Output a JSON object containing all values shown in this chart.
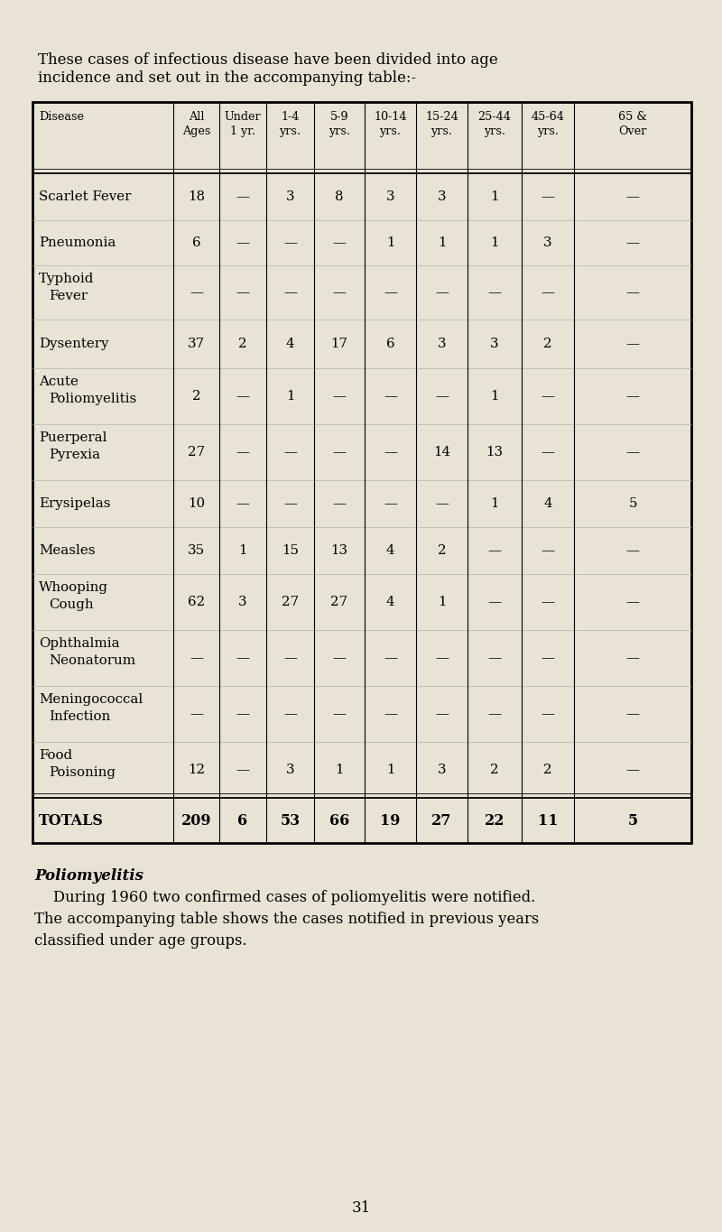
{
  "bg_color": "#e8e3d5",
  "intro_text_1": "These cases of infectious disease have been divided into age",
  "intro_text_2": "incidence and set out in the accompanying table:-",
  "col_headers_line1": [
    "Disease",
    "All",
    "Under",
    "1-4",
    "5-9",
    "10-14",
    "15-24",
    "25-44",
    "45-64",
    "65 &"
  ],
  "col_headers_line2": [
    "",
    "Ages",
    "1 yr.",
    "yrs.",
    "yrs.",
    "yrs.",
    "yrs.",
    "yrs.",
    "yrs.",
    "Over"
  ],
  "rows": [
    {
      "name": "Scarlet Fever",
      "name2": null,
      "values": [
        "18",
        "—",
        "3",
        "8",
        "3",
        "3",
        "1",
        "—",
        "—"
      ]
    },
    {
      "name": "Pneumonia",
      "name2": null,
      "values": [
        "6",
        "—",
        "—",
        "—",
        "1",
        "1",
        "1",
        "3",
        "—"
      ]
    },
    {
      "name": "Typhoid",
      "name2": "Fever",
      "values": [
        "—",
        "—",
        "—",
        "—",
        "—",
        "—",
        "—",
        "—",
        "—"
      ]
    },
    {
      "name": "Dysentery",
      "name2": null,
      "values": [
        "37",
        "2",
        "4",
        "17",
        "6",
        "3",
        "3",
        "2",
        "—"
      ]
    },
    {
      "name": "Acute",
      "name2": "Poliomyelitis",
      "values": [
        "2",
        "—",
        "1",
        "—",
        "—",
        "—",
        "1",
        "—",
        "—"
      ]
    },
    {
      "name": "Puerperal",
      "name2": "Pyrexia",
      "values": [
        "27",
        "—",
        "—",
        "—",
        "—",
        "14",
        "13",
        "—",
        "—"
      ]
    },
    {
      "name": "Erysipelas",
      "name2": null,
      "values": [
        "10",
        "—",
        "—",
        "—",
        "—",
        "—",
        "1",
        "4",
        "5"
      ]
    },
    {
      "name": "Measles",
      "name2": null,
      "values": [
        "35",
        "1",
        "15",
        "13",
        "4",
        "2",
        "—",
        "—",
        "—"
      ]
    },
    {
      "name": "Whooping",
      "name2": "Cough",
      "values": [
        "62",
        "3",
        "27",
        "27",
        "4",
        "1",
        "—",
        "—",
        "—"
      ]
    },
    {
      "name": "Ophthalmia",
      "name2": "Neonatorum",
      "values": [
        "—",
        "—",
        "—",
        "—",
        "—",
        "—",
        "—",
        "—",
        "—"
      ]
    },
    {
      "name": "Meningococcal",
      "name2": "Infection",
      "values": [
        "—",
        "—",
        "—",
        "—",
        "—",
        "—",
        "—",
        "—",
        "—"
      ]
    },
    {
      "name": "Food",
      "name2": "Poisoning",
      "values": [
        "12",
        "—",
        "3",
        "1",
        "1",
        "3",
        "2",
        "2",
        "—"
      ]
    }
  ],
  "totals_label": "TOTALS",
  "totals_values": [
    "209",
    "6",
    "53",
    "66",
    "19",
    "27",
    "22",
    "11",
    "5"
  ],
  "polio_heading": "Poliomyelitis",
  "polio_para": "    During 1960 two confirmed cases of poliomyelitis were notified.\nThe accompanying table shows the cases notified in previous years\nclassified under age groups.",
  "page_number": "31"
}
